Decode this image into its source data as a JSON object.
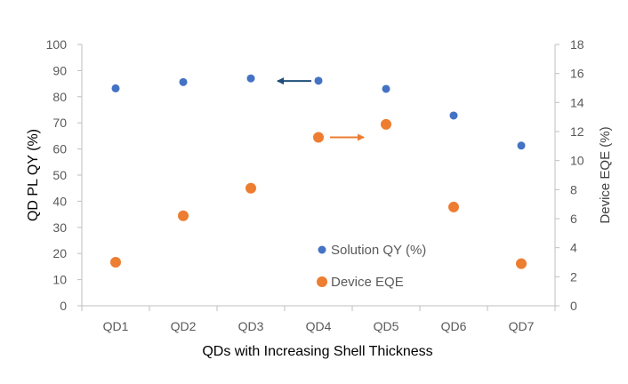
{
  "chart_data": {
    "type": "scatter",
    "categories": [
      "QD1",
      "QD2",
      "QD3",
      "QD4",
      "QD5",
      "QD6",
      "QD7"
    ],
    "series": [
      {
        "name": "Solution QY (%)",
        "axis": "left",
        "color": "#4472C4",
        "values": [
          83.2,
          85.6,
          87,
          86.1,
          83,
          72.8,
          61.3
        ]
      },
      {
        "name": "Device EQE",
        "axis": "right",
        "color": "#ED7D31",
        "values": [
          3.0,
          6.2,
          8.1,
          11.6,
          12.5,
          6.8,
          2.9
        ]
      }
    ],
    "xlabel": "QDs with Increasing Shell Thickness",
    "ylabel": "QD PL QY  (%)",
    "y2label": "Device EQE (%)",
    "ylim": [
      0,
      100
    ],
    "yticks": [
      "0",
      "10",
      "20",
      "30",
      "40",
      "50",
      "60",
      "70",
      "80",
      "90",
      "100"
    ],
    "y2lim": [
      0,
      18
    ],
    "y2ticks": [
      "0",
      "2",
      "4",
      "6",
      "8",
      "10",
      "12",
      "14",
      "16",
      "18"
    ],
    "annotations": [
      {
        "type": "arrow",
        "direction": "left",
        "color": "#1F4E79",
        "x_category": "QD3",
        "y": 86
      },
      {
        "type": "arrow",
        "direction": "right",
        "color": "#ED7D31",
        "x_category": "QD4",
        "y2": 11.6
      }
    ],
    "legend_position": "bottom-center",
    "grid": false
  }
}
